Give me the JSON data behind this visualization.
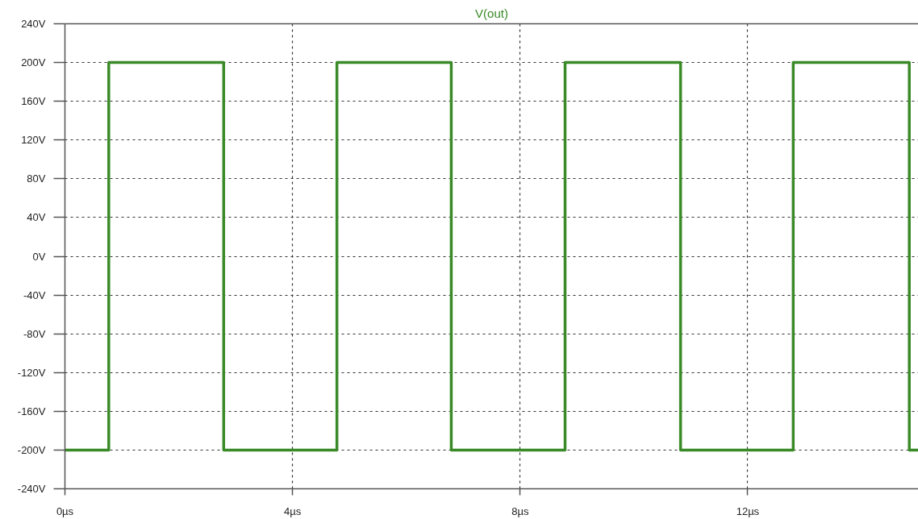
{
  "chart_data": {
    "type": "step",
    "title": "V(out)",
    "x": [
      0,
      0.77,
      2.79,
      4.78,
      6.79,
      8.79,
      10.82,
      12.8,
      14.84,
      15
    ],
    "series": [
      {
        "color": "#3a8a28",
        "values": [
          -200,
          200,
          -200,
          200,
          -200,
          200,
          -200,
          200,
          -200,
          -200
        ]
      }
    ],
    "xlim": [
      0,
      15
    ],
    "xticks": [
      {
        "value": 0,
        "label": "0µs"
      },
      {
        "value": 4,
        "label": "4µs"
      },
      {
        "value": 8,
        "label": "8µs"
      },
      {
        "value": 12,
        "label": "12µs"
      }
    ],
    "ylim": [
      -240,
      240
    ],
    "yticks": [
      {
        "value": -240,
        "label": "-240V"
      },
      {
        "value": -200,
        "label": "-200V"
      },
      {
        "value": -160,
        "label": "-160V"
      },
      {
        "value": -120,
        "label": "-120V"
      },
      {
        "value": -80,
        "label": "-80V"
      },
      {
        "value": -40,
        "label": "-40V"
      },
      {
        "value": 0,
        "label": "0V"
      },
      {
        "value": 40,
        "label": "40V"
      },
      {
        "value": 80,
        "label": "80V"
      },
      {
        "value": 120,
        "label": "120V"
      },
      {
        "value": 160,
        "label": "160V"
      },
      {
        "value": 200,
        "label": "200V"
      },
      {
        "value": 240,
        "label": "240V"
      }
    ],
    "grid": true
  }
}
